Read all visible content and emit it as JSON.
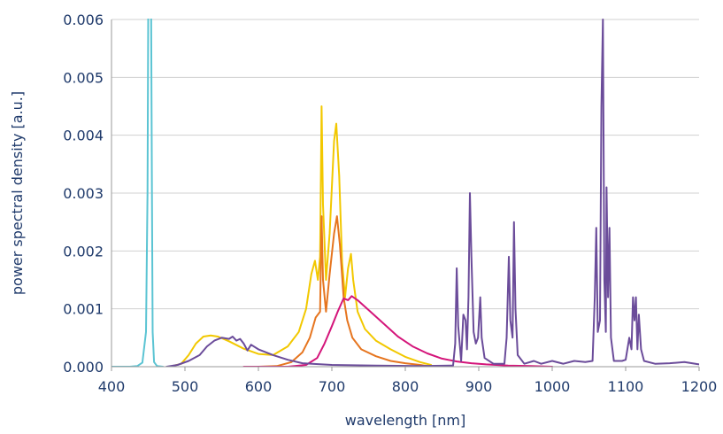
{
  "chart_data": {
    "type": "line",
    "title": "",
    "xlabel": "wavelength [nm]",
    "ylabel": "power spectral density [a.u.]",
    "xlim": [
      400,
      1200
    ],
    "ylim": [
      0,
      0.006
    ],
    "x_ticks": [
      "400",
      "500",
      "600",
      "700",
      "800",
      "900",
      "1000",
      "1100",
      "1200"
    ],
    "y_ticks": [
      "0.000",
      "0.001",
      "0.002",
      "0.003",
      "0.004",
      "0.005",
      "0.006"
    ],
    "grid": true,
    "legend": "none",
    "series": [
      {
        "color": "#5bc4d3",
        "points": [
          [
            400,
            0
          ],
          [
            425,
            0
          ],
          [
            435,
            1e-05
          ],
          [
            442,
            7e-05
          ],
          [
            447,
            0.0006
          ],
          [
            449,
            0.003
          ],
          [
            450,
            0.0061
          ],
          [
            454,
            0.0061
          ],
          [
            455,
            0.003
          ],
          [
            456,
            0.0006
          ],
          [
            458,
            8e-05
          ],
          [
            462,
            1e-05
          ],
          [
            470,
            0
          ]
        ]
      },
      {
        "color": "#f2c800",
        "points": [
          [
            480,
            0
          ],
          [
            495,
            5e-05
          ],
          [
            505,
            0.0002
          ],
          [
            515,
            0.0004
          ],
          [
            525,
            0.00052
          ],
          [
            535,
            0.00054
          ],
          [
            545,
            0.00052
          ],
          [
            560,
            0.00044
          ],
          [
            580,
            0.00031
          ],
          [
            600,
            0.00022
          ],
          [
            620,
            0.0002
          ],
          [
            640,
            0.00035
          ],
          [
            655,
            0.0006
          ],
          [
            665,
            0.001
          ],
          [
            672,
            0.0016
          ],
          [
            677,
            0.00183
          ],
          [
            681,
            0.0015
          ],
          [
            684,
            0.0019
          ],
          [
            686,
            0.0045
          ],
          [
            688,
            0.0028
          ],
          [
            692,
            0.0015
          ],
          [
            697,
            0.0023
          ],
          [
            703,
            0.0039
          ],
          [
            706,
            0.0042
          ],
          [
            710,
            0.0033
          ],
          [
            714,
            0.0018
          ],
          [
            718,
            0.0012
          ],
          [
            722,
            0.0017
          ],
          [
            726,
            0.00195
          ],
          [
            729,
            0.0015
          ],
          [
            735,
            0.00095
          ],
          [
            745,
            0.00065
          ],
          [
            760,
            0.00045
          ],
          [
            780,
            0.0003
          ],
          [
            800,
            0.00017
          ],
          [
            820,
            8e-05
          ],
          [
            835,
            3e-05
          ]
        ]
      },
      {
        "color": "#e6751f",
        "points": [
          [
            600,
            0
          ],
          [
            625,
            1e-05
          ],
          [
            645,
            8e-05
          ],
          [
            660,
            0.00025
          ],
          [
            670,
            0.0005
          ],
          [
            678,
            0.00085
          ],
          [
            684,
            0.00095
          ],
          [
            686,
            0.0026
          ],
          [
            688,
            0.0015
          ],
          [
            692,
            0.00095
          ],
          [
            697,
            0.0016
          ],
          [
            703,
            0.0023
          ],
          [
            707,
            0.0026
          ],
          [
            711,
            0.0021
          ],
          [
            716,
            0.0012
          ],
          [
            721,
            0.0008
          ],
          [
            728,
            0.0005
          ],
          [
            740,
            0.0003
          ],
          [
            760,
            0.00018
          ],
          [
            780,
            0.0001
          ],
          [
            800,
            6e-05
          ],
          [
            820,
            3e-05
          ],
          [
            830,
            1e-05
          ]
        ]
      },
      {
        "color": "#d4157a",
        "points": [
          [
            580,
            0
          ],
          [
            640,
            0
          ],
          [
            665,
            3e-05
          ],
          [
            680,
            0.00015
          ],
          [
            690,
            0.0004
          ],
          [
            700,
            0.0007
          ],
          [
            708,
            0.00095
          ],
          [
            716,
            0.00118
          ],
          [
            722,
            0.00115
          ],
          [
            727,
            0.00122
          ],
          [
            735,
            0.00115
          ],
          [
            750,
            0.00098
          ],
          [
            770,
            0.00075
          ],
          [
            790,
            0.00052
          ],
          [
            810,
            0.00035
          ],
          [
            830,
            0.00023
          ],
          [
            850,
            0.00014
          ],
          [
            870,
            9e-05
          ],
          [
            890,
            6e-05
          ],
          [
            910,
            4e-05
          ],
          [
            940,
            2e-05
          ],
          [
            970,
            1e-05
          ],
          [
            1000,
            0
          ]
        ]
      },
      {
        "color": "#6b4c9a",
        "points": [
          [
            475,
            0
          ],
          [
            490,
            3e-05
          ],
          [
            505,
            0.0001
          ],
          [
            520,
            0.0002
          ],
          [
            530,
            0.00035
          ],
          [
            540,
            0.00045
          ],
          [
            550,
            0.0005
          ],
          [
            560,
            0.00048
          ],
          [
            565,
            0.00052
          ],
          [
            570,
            0.00045
          ],
          [
            575,
            0.00048
          ],
          [
            580,
            0.0004
          ],
          [
            585,
            0.00028
          ],
          [
            590,
            0.00038
          ],
          [
            600,
            0.0003
          ],
          [
            620,
            0.0002
          ],
          [
            640,
            0.00012
          ],
          [
            660,
            6e-05
          ],
          [
            700,
            3e-05
          ],
          [
            760,
            2e-05
          ],
          [
            820,
            1e-05
          ],
          [
            865,
            2e-05
          ],
          [
            868,
            0.0004
          ],
          [
            870,
            0.0017
          ],
          [
            872,
            0.0007
          ],
          [
            876,
            0.0001
          ],
          [
            879,
            0.0009
          ],
          [
            882,
            0.0008
          ],
          [
            884,
            0.0003
          ],
          [
            886,
            0.0012
          ],
          [
            888,
            0.003
          ],
          [
            890,
            0.0019
          ],
          [
            893,
            0.0006
          ],
          [
            896,
            0.0004
          ],
          [
            899,
            0.0005
          ],
          [
            902,
            0.0012
          ],
          [
            904,
            0.0005
          ],
          [
            908,
            0.00015
          ],
          [
            920,
            5e-05
          ],
          [
            935,
            5e-05
          ],
          [
            938,
            0.0005
          ],
          [
            941,
            0.0019
          ],
          [
            943,
            0.0008
          ],
          [
            946,
            0.0005
          ],
          [
            948,
            0.0025
          ],
          [
            950,
            0.001
          ],
          [
            953,
            0.0002
          ],
          [
            962,
            5e-05
          ],
          [
            975,
            0.0001
          ],
          [
            985,
            5e-05
          ],
          [
            1000,
            0.0001
          ],
          [
            1015,
            5e-05
          ],
          [
            1030,
            0.0001
          ],
          [
            1045,
            8e-05
          ],
          [
            1055,
            0.0001
          ],
          [
            1058,
            0.0012
          ],
          [
            1060,
            0.0024
          ],
          [
            1062,
            0.0006
          ],
          [
            1065,
            0.0008
          ],
          [
            1067,
            0.0045
          ],
          [
            1069,
            0.006
          ],
          [
            1071,
            0.0015
          ],
          [
            1073,
            0.0006
          ],
          [
            1074,
            0.0031
          ],
          [
            1076,
            0.0012
          ],
          [
            1078,
            0.0024
          ],
          [
            1080,
            0.0005
          ],
          [
            1084,
            0.0001
          ],
          [
            1095,
            0.0001
          ],
          [
            1100,
            0.00012
          ],
          [
            1105,
            0.0005
          ],
          [
            1108,
            0.0003
          ],
          [
            1110,
            0.0012
          ],
          [
            1112,
            0.0008
          ],
          [
            1114,
            0.0012
          ],
          [
            1116,
            0.0003
          ],
          [
            1118,
            0.0009
          ],
          [
            1121,
            0.0003
          ],
          [
            1125,
            0.0001
          ],
          [
            1140,
            5e-05
          ],
          [
            1160,
            6e-05
          ],
          [
            1180,
            8e-05
          ],
          [
            1195,
            5e-05
          ],
          [
            1200,
            4e-05
          ]
        ]
      }
    ]
  }
}
